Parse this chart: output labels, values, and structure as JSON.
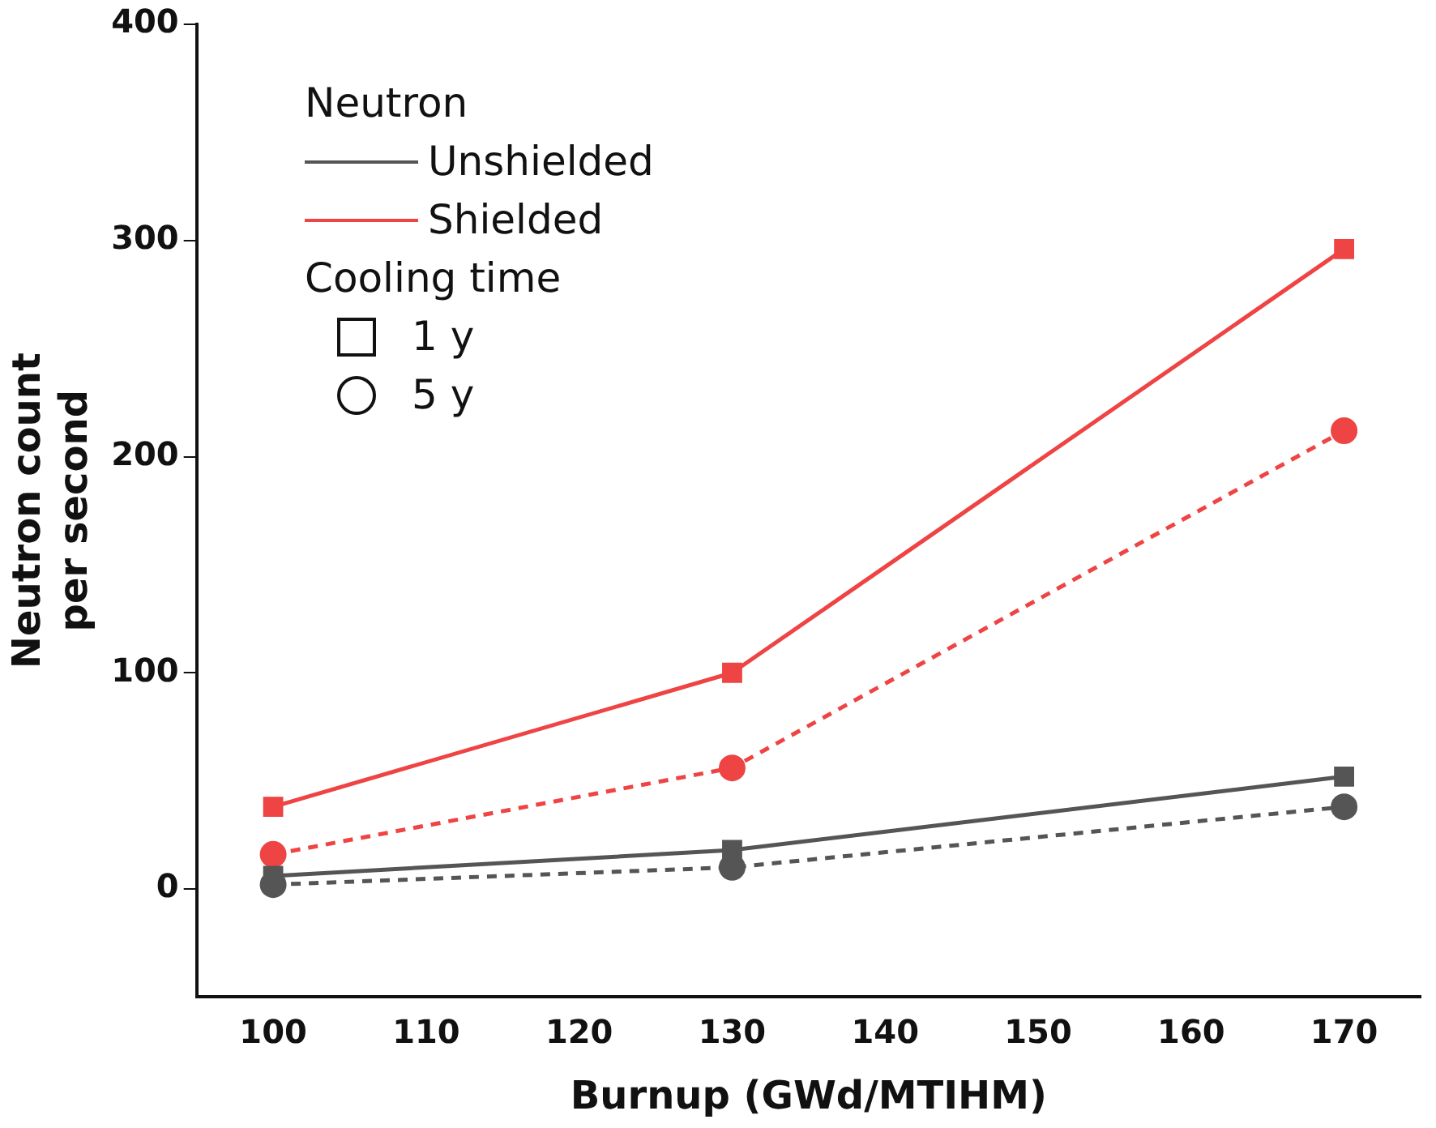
{
  "chart_data": {
    "type": "line",
    "xlabel": "Burnup (GWd/MTIHM)",
    "ylabel": "Neutron count\nper second",
    "legend_title": "Neutron",
    "legend": "top left",
    "annotations": [
      "Cooling time",
      "1 y",
      "5 y"
    ],
    "x": [
      100,
      130,
      170
    ],
    "xlim": [
      95,
      175
    ],
    "xticks": [
      100,
      110,
      120,
      130,
      140,
      150,
      160,
      170
    ],
    "ylim": [
      -50,
      400
    ],
    "yticks": [
      0,
      100,
      200,
      300,
      400
    ],
    "grid": false,
    "series": [
      {
        "name": "Unshielded",
        "color": "#555555",
        "marker": "square",
        "line_style": "solid",
        "values": [
          6,
          18,
          52
        ]
      },
      {
        "color": "#555555",
        "marker": "circle",
        "line_style": "dashed",
        "values": [
          2,
          10,
          38
        ]
      },
      {
        "name": "Shielded",
        "color": "#ee4444",
        "marker": "square",
        "line_style": "solid",
        "values": [
          38,
          100,
          296
        ]
      },
      {
        "color": "#ee4444",
        "marker": "circle",
        "line_style": "dashed",
        "values": [
          16,
          56,
          212
        ]
      }
    ]
  }
}
